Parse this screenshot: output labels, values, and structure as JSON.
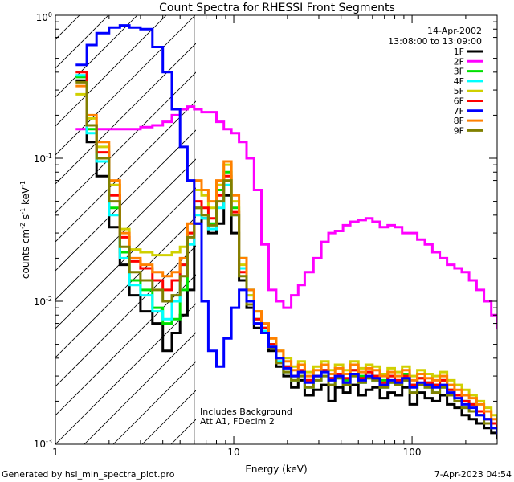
{
  "chart_data": {
    "type": "line",
    "title": "Count Spectra for RHESSI Front Segments",
    "xlabel": "Energy (keV)",
    "ylabel": {
      "base": "counts cm",
      "sup1": "-2",
      "mid": " s",
      "sup2": "-1",
      "tail": " keV",
      "sup3": "-1"
    },
    "xscale": "log",
    "yscale": "log",
    "xlim": [
      1,
      300
    ],
    "ylim": [
      0.001,
      1
    ],
    "x_tick_labels": [
      {
        "v": 1,
        "text": "1"
      },
      {
        "v": 10,
        "text": "10"
      },
      {
        "v": 100,
        "text": "100"
      }
    ],
    "y_tick_labels": [
      {
        "v": 1,
        "base": "10",
        "sup": "0"
      },
      {
        "v": 0.1,
        "base": "10",
        "sup": "-1"
      },
      {
        "v": 0.01,
        "base": "10",
        "sup": "-2"
      },
      {
        "v": 0.001,
        "base": "10",
        "sup": "-3"
      }
    ],
    "date": "14-Apr-2002",
    "time_range": "13:08:00 to 13:09:00",
    "attenuator_boundary_keV": 6,
    "annotations": [
      "Includes Background",
      "Att A1, FDecim 2"
    ],
    "footer_left": "Generated by hsi_min_spectra_plot.pro",
    "footer_right": "7-Apr-2023 04:54",
    "legend_position": "top-right",
    "energy_keV": [
      1.3,
      1.5,
      1.7,
      2.0,
      2.3,
      2.6,
      3.0,
      3.5,
      4.0,
      4.5,
      5.0,
      5.5,
      6.0,
      6.6,
      7.2,
      8.0,
      8.8,
      9.7,
      10.7,
      11.8,
      13.0,
      14.3,
      15.7,
      17.3,
      19.0,
      21,
      23,
      25,
      28,
      31,
      34,
      37,
      41,
      45,
      50,
      55,
      60,
      66,
      73,
      80,
      88,
      97,
      107,
      118,
      130,
      143,
      157,
      173,
      190,
      209,
      230,
      253,
      278,
      300
    ],
    "series": [
      {
        "name": "1F",
        "color": "#000000",
        "values": [
          0.35,
          0.13,
          0.075,
          0.033,
          0.018,
          0.011,
          0.0085,
          0.007,
          0.0045,
          0.006,
          0.008,
          0.012,
          0.035,
          0.038,
          0.03,
          0.035,
          0.055,
          0.03,
          0.014,
          0.009,
          0.0065,
          0.006,
          0.0045,
          0.0035,
          0.003,
          0.0025,
          0.0028,
          0.0022,
          0.0024,
          0.0026,
          0.002,
          0.0025,
          0.0023,
          0.0026,
          0.0022,
          0.0024,
          0.0025,
          0.0021,
          0.0023,
          0.0022,
          0.0025,
          0.0019,
          0.0023,
          0.0021,
          0.002,
          0.0022,
          0.0019,
          0.0018,
          0.0016,
          0.0015,
          0.0014,
          0.0013,
          0.0012,
          0.0011
        ]
      },
      {
        "name": "2F",
        "color": "#ff00ff",
        "values": [
          0.16,
          0.17,
          0.16,
          0.16,
          0.16,
          0.16,
          0.165,
          0.17,
          0.18,
          0.2,
          0.22,
          0.23,
          0.22,
          0.21,
          0.21,
          0.18,
          0.16,
          0.15,
          0.13,
          0.1,
          0.06,
          0.025,
          0.012,
          0.01,
          0.009,
          0.011,
          0.013,
          0.016,
          0.02,
          0.026,
          0.03,
          0.031,
          0.034,
          0.036,
          0.037,
          0.038,
          0.036,
          0.033,
          0.034,
          0.033,
          0.03,
          0.03,
          0.027,
          0.025,
          0.022,
          0.02,
          0.018,
          0.017,
          0.016,
          0.014,
          0.012,
          0.01,
          0.008,
          0.0065
        ]
      },
      {
        "name": "3F",
        "color": "#00e000",
        "values": [
          0.37,
          0.16,
          0.1,
          0.045,
          0.022,
          0.014,
          0.012,
          0.009,
          0.007,
          0.0075,
          0.012,
          0.03,
          0.045,
          0.04,
          0.035,
          0.06,
          0.08,
          0.045,
          0.02,
          0.012,
          0.0075,
          0.0065,
          0.005,
          0.004,
          0.0035,
          0.003,
          0.0032,
          0.0028,
          0.003,
          0.0033,
          0.0029,
          0.0031,
          0.0028,
          0.0033,
          0.003,
          0.0032,
          0.003,
          0.0028,
          0.003,
          0.0028,
          0.0031,
          0.0026,
          0.0029,
          0.0027,
          0.0026,
          0.0028,
          0.0024,
          0.0022,
          0.002,
          0.0019,
          0.0017,
          0.0015,
          0.0014,
          0.0013
        ]
      },
      {
        "name": "4F",
        "color": "#00ffff",
        "values": [
          0.38,
          0.15,
          0.095,
          0.04,
          0.02,
          0.013,
          0.011,
          0.0085,
          0.0075,
          0.01,
          0.018,
          0.025,
          0.04,
          0.038,
          0.032,
          0.045,
          0.065,
          0.04,
          0.017,
          0.011,
          0.007,
          0.0062,
          0.0048,
          0.0038,
          0.0032,
          0.0028,
          0.003,
          0.0025,
          0.0028,
          0.003,
          0.0026,
          0.0029,
          0.0026,
          0.003,
          0.0027,
          0.0029,
          0.0028,
          0.0025,
          0.0027,
          0.0026,
          0.0028,
          0.0023,
          0.0026,
          0.0025,
          0.0023,
          0.0025,
          0.0022,
          0.002,
          0.0018,
          0.0017,
          0.0016,
          0.0014,
          0.0013,
          0.0012
        ]
      },
      {
        "name": "5F",
        "color": "#d0d000",
        "values": [
          0.28,
          0.19,
          0.12,
          0.065,
          0.032,
          0.023,
          0.022,
          0.021,
          0.021,
          0.022,
          0.024,
          0.03,
          0.06,
          0.055,
          0.045,
          0.065,
          0.09,
          0.05,
          0.018,
          0.011,
          0.0085,
          0.007,
          0.0055,
          0.0045,
          0.004,
          0.0035,
          0.0038,
          0.0032,
          0.0035,
          0.0038,
          0.0033,
          0.0036,
          0.0033,
          0.0038,
          0.0034,
          0.0036,
          0.0035,
          0.0031,
          0.0034,
          0.0032,
          0.0035,
          0.003,
          0.0033,
          0.0031,
          0.003,
          0.0032,
          0.0028,
          0.0026,
          0.0024,
          0.0022,
          0.002,
          0.0018,
          0.0016,
          0.0015
        ]
      },
      {
        "name": "6F",
        "color": "#ff0000",
        "values": [
          0.4,
          0.17,
          0.11,
          0.055,
          0.028,
          0.019,
          0.017,
          0.014,
          0.012,
          0.014,
          0.018,
          0.03,
          0.05,
          0.045,
          0.038,
          0.055,
          0.075,
          0.042,
          0.016,
          0.01,
          0.0075,
          0.0065,
          0.005,
          0.004,
          0.0035,
          0.003,
          0.0033,
          0.0028,
          0.003,
          0.0033,
          0.0029,
          0.0031,
          0.0029,
          0.0033,
          0.0029,
          0.0032,
          0.003,
          0.0027,
          0.003,
          0.0028,
          0.003,
          0.0026,
          0.0029,
          0.0027,
          0.0026,
          0.0028,
          0.0024,
          0.0022,
          0.002,
          0.0019,
          0.0017,
          0.0015,
          0.0014,
          0.0013
        ]
      },
      {
        "name": "7F",
        "color": "#0000ff",
        "values": [
          0.45,
          0.62,
          0.75,
          0.82,
          0.85,
          0.82,
          0.8,
          0.6,
          0.4,
          0.22,
          0.12,
          0.07,
          0.035,
          0.01,
          0.0045,
          0.0035,
          0.0055,
          0.009,
          0.012,
          0.01,
          0.007,
          0.006,
          0.0048,
          0.004,
          0.0034,
          0.003,
          0.0032,
          0.0027,
          0.003,
          0.0032,
          0.0028,
          0.003,
          0.0027,
          0.0031,
          0.0028,
          0.003,
          0.0029,
          0.0026,
          0.0028,
          0.0027,
          0.0029,
          0.0025,
          0.0027,
          0.0026,
          0.0025,
          0.0026,
          0.0023,
          0.0021,
          0.0019,
          0.0018,
          0.0016,
          0.0015,
          0.0013,
          0.0012
        ]
      },
      {
        "name": "8F",
        "color": "#ff8000",
        "values": [
          0.32,
          0.2,
          0.13,
          0.07,
          0.03,
          0.02,
          0.018,
          0.016,
          0.015,
          0.016,
          0.02,
          0.035,
          0.07,
          0.06,
          0.05,
          0.07,
          0.095,
          0.055,
          0.02,
          0.012,
          0.0085,
          0.007,
          0.0055,
          0.0045,
          0.0038,
          0.0033,
          0.0036,
          0.003,
          0.0033,
          0.0036,
          0.0031,
          0.0034,
          0.0031,
          0.0036,
          0.0032,
          0.0034,
          0.0033,
          0.003,
          0.0032,
          0.003,
          0.0033,
          0.0028,
          0.0031,
          0.0029,
          0.0028,
          0.003,
          0.0026,
          0.0024,
          0.0022,
          0.0021,
          0.0019,
          0.0017,
          0.0015,
          0.0014
        ]
      },
      {
        "name": "9F",
        "color": "#808000",
        "values": [
          0.34,
          0.17,
          0.1,
          0.05,
          0.024,
          0.016,
          0.014,
          0.012,
          0.01,
          0.011,
          0.015,
          0.028,
          0.045,
          0.04,
          0.034,
          0.05,
          0.07,
          0.04,
          0.015,
          0.0095,
          0.007,
          0.006,
          0.0047,
          0.0037,
          0.0032,
          0.0028,
          0.003,
          0.0025,
          0.0028,
          0.003,
          0.0026,
          0.0029,
          0.0026,
          0.003,
          0.0027,
          0.0029,
          0.0028,
          0.0025,
          0.0027,
          0.0026,
          0.0028,
          0.0023,
          0.0026,
          0.0025,
          0.0023,
          0.0025,
          0.0022,
          0.002,
          0.0018,
          0.0017,
          0.0016,
          0.0014,
          0.0013,
          0.0012
        ]
      }
    ]
  }
}
